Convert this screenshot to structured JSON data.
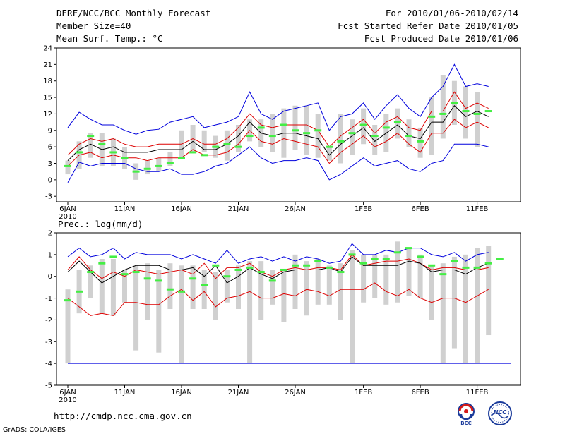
{
  "header": {
    "title": "DERF/NCC/BCC Monthly Forecast",
    "member_size": "Member Size=40",
    "variable": "Mean Surf. Temp.: °C",
    "forecast_period": "For 2010/01/06-2010/02/14",
    "start_date": "Fcst Started Refer Date 2010/01/05",
    "produced_date": "Fcst Produced Date 2010/01/06"
  },
  "footer": {
    "url": "http://cmdp.ncc.cma.gov.cn",
    "credit": "GrADS: COLA/IGES",
    "logo_left_text": "BCC",
    "logo_right_text": "NCC"
  },
  "colors": {
    "envelope": "#0000dd",
    "spread": "#dd0000",
    "mean": "#000000",
    "box": "#d0d0d0",
    "member_mark": "#44ee44"
  },
  "chart_data": [
    {
      "type": "line",
      "title": "",
      "ylabel": "°C",
      "ylim": [
        -4,
        24
      ],
      "yticks": [
        -3,
        0,
        3,
        6,
        9,
        12,
        15,
        18,
        21,
        24
      ],
      "xticks": [
        {
          "day": 0,
          "label": "6JAN",
          "year": "2010"
        },
        {
          "day": 5,
          "label": "11JAN"
        },
        {
          "day": 10,
          "label": "16JAN"
        },
        {
          "day": 15,
          "label": "21JAN"
        },
        {
          "day": 20,
          "label": "26JAN"
        },
        {
          "day": 26,
          "label": "1FEB"
        },
        {
          "day": 31,
          "label": "6FEB"
        },
        {
          "day": 36,
          "label": "11FEB"
        }
      ],
      "days": [
        0,
        1,
        2,
        3,
        4,
        5,
        6,
        7,
        8,
        9,
        10,
        11,
        12,
        13,
        14,
        15,
        16,
        17,
        18,
        19,
        20,
        21,
        22,
        23,
        24,
        25,
        26,
        27,
        28,
        29,
        30,
        31,
        32,
        33,
        34,
        35,
        36,
        37,
        38,
        39
      ],
      "series": [
        {
          "name": "max",
          "color": "#0000dd",
          "values": [
            9.5,
            12.3,
            11,
            10,
            10,
            9,
            8.3,
            9,
            9.2,
            10.5,
            11,
            11.5,
            9.5,
            10,
            10.5,
            11.5,
            16,
            12,
            11,
            12.5,
            13,
            13.5,
            14,
            9,
            11.5,
            12,
            14,
            11,
            13.5,
            15.5,
            13,
            11.5,
            15,
            17,
            21,
            17,
            17.5,
            17,
            null,
            null
          ]
        },
        {
          "name": "upper",
          "color": "#dd0000",
          "values": [
            4.5,
            6.5,
            7.5,
            7,
            7.5,
            6.5,
            6,
            6,
            6.5,
            6.5,
            6.5,
            7.5,
            6.5,
            6.5,
            7.5,
            9.5,
            12,
            10,
            9.5,
            10,
            10,
            10,
            9,
            6,
            8,
            9.5,
            11,
            8.5,
            10.5,
            11.5,
            9.5,
            9,
            12.5,
            12.5,
            16,
            13,
            14,
            13,
            null,
            null
          ]
        },
        {
          "name": "mean",
          "color": "#000000",
          "values": [
            3.5,
            5.5,
            6.5,
            5.5,
            6,
            5,
            5,
            5,
            5.5,
            5.5,
            5.5,
            7,
            5.5,
            5.5,
            6.5,
            8,
            10.5,
            8.5,
            8,
            8.5,
            8.5,
            8,
            7.5,
            4.5,
            6.5,
            8,
            9.5,
            7,
            8.5,
            10,
            8,
            7.5,
            10.5,
            10.5,
            13.5,
            11.5,
            12.5,
            11.5,
            null,
            null
          ]
        },
        {
          "name": "lower",
          "color": "#dd0000",
          "values": [
            2.5,
            4.5,
            5,
            4,
            4.5,
            4,
            4,
            3.5,
            4,
            4,
            4,
            5.5,
            4.5,
            4.5,
            5,
            6.5,
            9,
            7,
            6.5,
            7.5,
            7,
            6.5,
            6,
            3,
            5,
            6.5,
            8,
            6,
            7,
            8.5,
            6.5,
            5,
            8.5,
            8.5,
            11,
            9.5,
            10.5,
            9.5,
            null,
            null
          ]
        },
        {
          "name": "min",
          "color": "#0000dd",
          "values": [
            -0.5,
            3.2,
            2.5,
            3,
            3,
            3,
            2,
            1.5,
            1.5,
            2,
            1,
            1,
            1.5,
            2.5,
            3,
            4.5,
            6,
            4,
            3,
            3.5,
            3.5,
            4,
            3.5,
            0,
            1,
            2.5,
            4,
            2.5,
            3,
            3.5,
            2,
            1.5,
            3,
            3.5,
            6.5,
            6.5,
            6.5,
            6,
            null,
            null
          ]
        }
      ],
      "boxes": {
        "q_low": [
          1,
          2,
          4,
          2.5,
          2.5,
          2,
          0,
          1,
          1.5,
          2.5,
          4,
          5,
          5,
          4,
          3.5,
          5,
          7,
          6,
          5,
          4,
          5.5,
          4.5,
          4,
          3.5,
          3,
          4.5,
          6.5,
          4.5,
          5,
          7.5,
          6,
          4,
          4.5,
          7.5,
          10,
          7.5,
          6,
          6,
          null,
          null
        ],
        "q_high": [
          3.5,
          7,
          8.5,
          8.5,
          7.5,
          6,
          3,
          3.5,
          4,
          5,
          9,
          10,
          9,
          8,
          9,
          10,
          11,
          11,
          12,
          13,
          13.5,
          13.5,
          12,
          6,
          12,
          11,
          13,
          10,
          12,
          13,
          11,
          9.5,
          15,
          19,
          18,
          17,
          16,
          null,
          null,
          null
        ]
      },
      "members": [
        2.5,
        5,
        8,
        6.5,
        5,
        4,
        1.5,
        2,
        2.5,
        3,
        4,
        5,
        4.5,
        6,
        6.5,
        6,
        8,
        9.5,
        8,
        10,
        9,
        8.5,
        9,
        6,
        7,
        8.5,
        10,
        8,
        9.5,
        10.5,
        8,
        7,
        11.5,
        12,
        14,
        12.5,
        12,
        12.5,
        null,
        null
      ]
    },
    {
      "type": "line",
      "title": "Prec.: log(mm/d)",
      "ylabel": "log(mm/d)",
      "ylim": [
        -5,
        2
      ],
      "yticks": [
        -5,
        -4,
        -3,
        -2,
        -1,
        0,
        1,
        2
      ],
      "xticks": [
        {
          "day": 0,
          "label": "6JAN",
          "year": "2010"
        },
        {
          "day": 5,
          "label": "11JAN"
        },
        {
          "day": 10,
          "label": "16JAN"
        },
        {
          "day": 15,
          "label": "21JAN"
        },
        {
          "day": 20,
          "label": "26JAN"
        },
        {
          "day": 26,
          "label": "1FEB"
        },
        {
          "day": 31,
          "label": "6FEB"
        },
        {
          "day": 36,
          "label": "11FEB"
        }
      ],
      "days": [
        0,
        1,
        2,
        3,
        4,
        5,
        6,
        7,
        8,
        9,
        10,
        11,
        12,
        13,
        14,
        15,
        16,
        17,
        18,
        19,
        20,
        21,
        22,
        23,
        24,
        25,
        26,
        27,
        28,
        29,
        30,
        31,
        32,
        33,
        34,
        35,
        36,
        37,
        38,
        39
      ],
      "series": [
        {
          "name": "max",
          "color": "#0000dd",
          "values": [
            0.9,
            1.3,
            0.9,
            1,
            1.3,
            0.8,
            1.1,
            1,
            1,
            1,
            0.8,
            1,
            0.8,
            0.6,
            1.2,
            0.6,
            0.8,
            0.9,
            0.7,
            0.9,
            0.7,
            0.9,
            0.8,
            0.6,
            0.7,
            1.5,
            1,
            1,
            1.2,
            1.1,
            1.3,
            1.3,
            1,
            0.9,
            1.1,
            0.7,
            1,
            1.1,
            null,
            null
          ]
        },
        {
          "name": "upper",
          "color": "#dd0000",
          "values": [
            0.3,
            0.9,
            0.3,
            -0.1,
            0.2,
            0,
            0.3,
            0.2,
            0.1,
            0.2,
            0.3,
            0.1,
            0.6,
            -0.1,
            0.4,
            0.4,
            0.6,
            0.2,
            0,
            0.3,
            0.4,
            0.3,
            0.4,
            0.4,
            0.3,
            1,
            0.5,
            0.6,
            0.7,
            0.7,
            0.8,
            0.6,
            0.3,
            0.4,
            0.4,
            0.3,
            0.3,
            0.4,
            null,
            null
          ]
        },
        {
          "name": "mean",
          "color": "#000000",
          "values": [
            0.2,
            0.7,
            0.2,
            -0.3,
            0,
            0.3,
            0.5,
            0.5,
            0.5,
            0.3,
            0.3,
            0.4,
            0,
            0.5,
            -0.3,
            0,
            0.4,
            0.1,
            -0.1,
            0.2,
            0.3,
            0.3,
            0.3,
            0.4,
            0.2,
            0.9,
            0.5,
            0.5,
            0.5,
            0.5,
            0.7,
            0.6,
            0.2,
            0.3,
            0.3,
            0.1,
            0.4,
            0.6,
            null,
            null
          ]
        },
        {
          "name": "lower",
          "color": "#dd0000",
          "values": [
            -1,
            -1.4,
            -1.8,
            -1.7,
            -1.8,
            -1.2,
            -1.2,
            -1.3,
            -1.3,
            -0.9,
            -0.6,
            -1.1,
            -0.7,
            -1.4,
            -1,
            -0.9,
            -0.7,
            -1,
            -1,
            -0.8,
            -0.9,
            -0.6,
            -0.7,
            -0.9,
            -0.6,
            -0.6,
            -0.6,
            -0.3,
            -0.7,
            -0.9,
            -0.6,
            -1,
            -1.2,
            -1,
            -1,
            -1.2,
            -0.9,
            -0.6,
            null,
            null
          ]
        },
        {
          "name": "min",
          "color": "#0000dd",
          "values": [
            -4,
            -4,
            -4,
            -4,
            -4,
            -4,
            -4,
            -4,
            -4,
            -4,
            -4,
            -4,
            -4,
            -4,
            -4,
            -4,
            -4,
            -4,
            -4,
            -4,
            -4,
            -4,
            -4,
            -4,
            -4,
            -4,
            -4,
            -4,
            -4,
            -4,
            -4,
            -4,
            -4,
            -4,
            -4,
            -4,
            -4,
            -4,
            -4,
            -4
          ]
        }
      ],
      "boxes": {
        "q_low": [
          -4,
          -1.7,
          -1,
          -1.7,
          -1.8,
          -1.2,
          -3.4,
          -2,
          -3.5,
          -1.5,
          -4,
          -1.5,
          -1.5,
          -2,
          -1.2,
          -1.5,
          -4,
          -2,
          -1.3,
          -2.1,
          -1.5,
          -1.8,
          -1.3,
          -1.3,
          -2,
          -4,
          -1.2,
          -1,
          -1.3,
          -1.2,
          -0.9,
          -1,
          -2,
          -4,
          -3.3,
          -4,
          -4,
          -2.7,
          null,
          null
        ],
        "q_high": [
          -0.6,
          0.3,
          0.5,
          0.8,
          0.8,
          0.3,
          0.5,
          0.6,
          0.3,
          0.6,
          0.5,
          0.5,
          0.3,
          0.2,
          0.3,
          0.5,
          0.7,
          0.7,
          0.3,
          0.3,
          1,
          0.7,
          0.8,
          0.5,
          0.6,
          1.2,
          1,
          1,
          1,
          1.6,
          1.3,
          1,
          0.5,
          0.6,
          0.9,
          1,
          1.3,
          1.4,
          null,
          null
        ]
      },
      "members": [
        -1.1,
        -0.7,
        0.2,
        0.6,
        0.9,
        0.1,
        0.2,
        -0.1,
        -0.2,
        -0.6,
        -0.7,
        -0.1,
        -0.4,
        0.5,
        0,
        0.3,
        0.4,
        0.2,
        -0.2,
        0.3,
        0.5,
        0.5,
        0.7,
        0.4,
        0.2,
        1,
        0.6,
        0.8,
        0.8,
        1.1,
        1.3,
        0.9,
        0.5,
        0.1,
        0.7,
        0.4,
        0.4,
        0.6,
        0.8,
        null
      ]
    }
  ]
}
